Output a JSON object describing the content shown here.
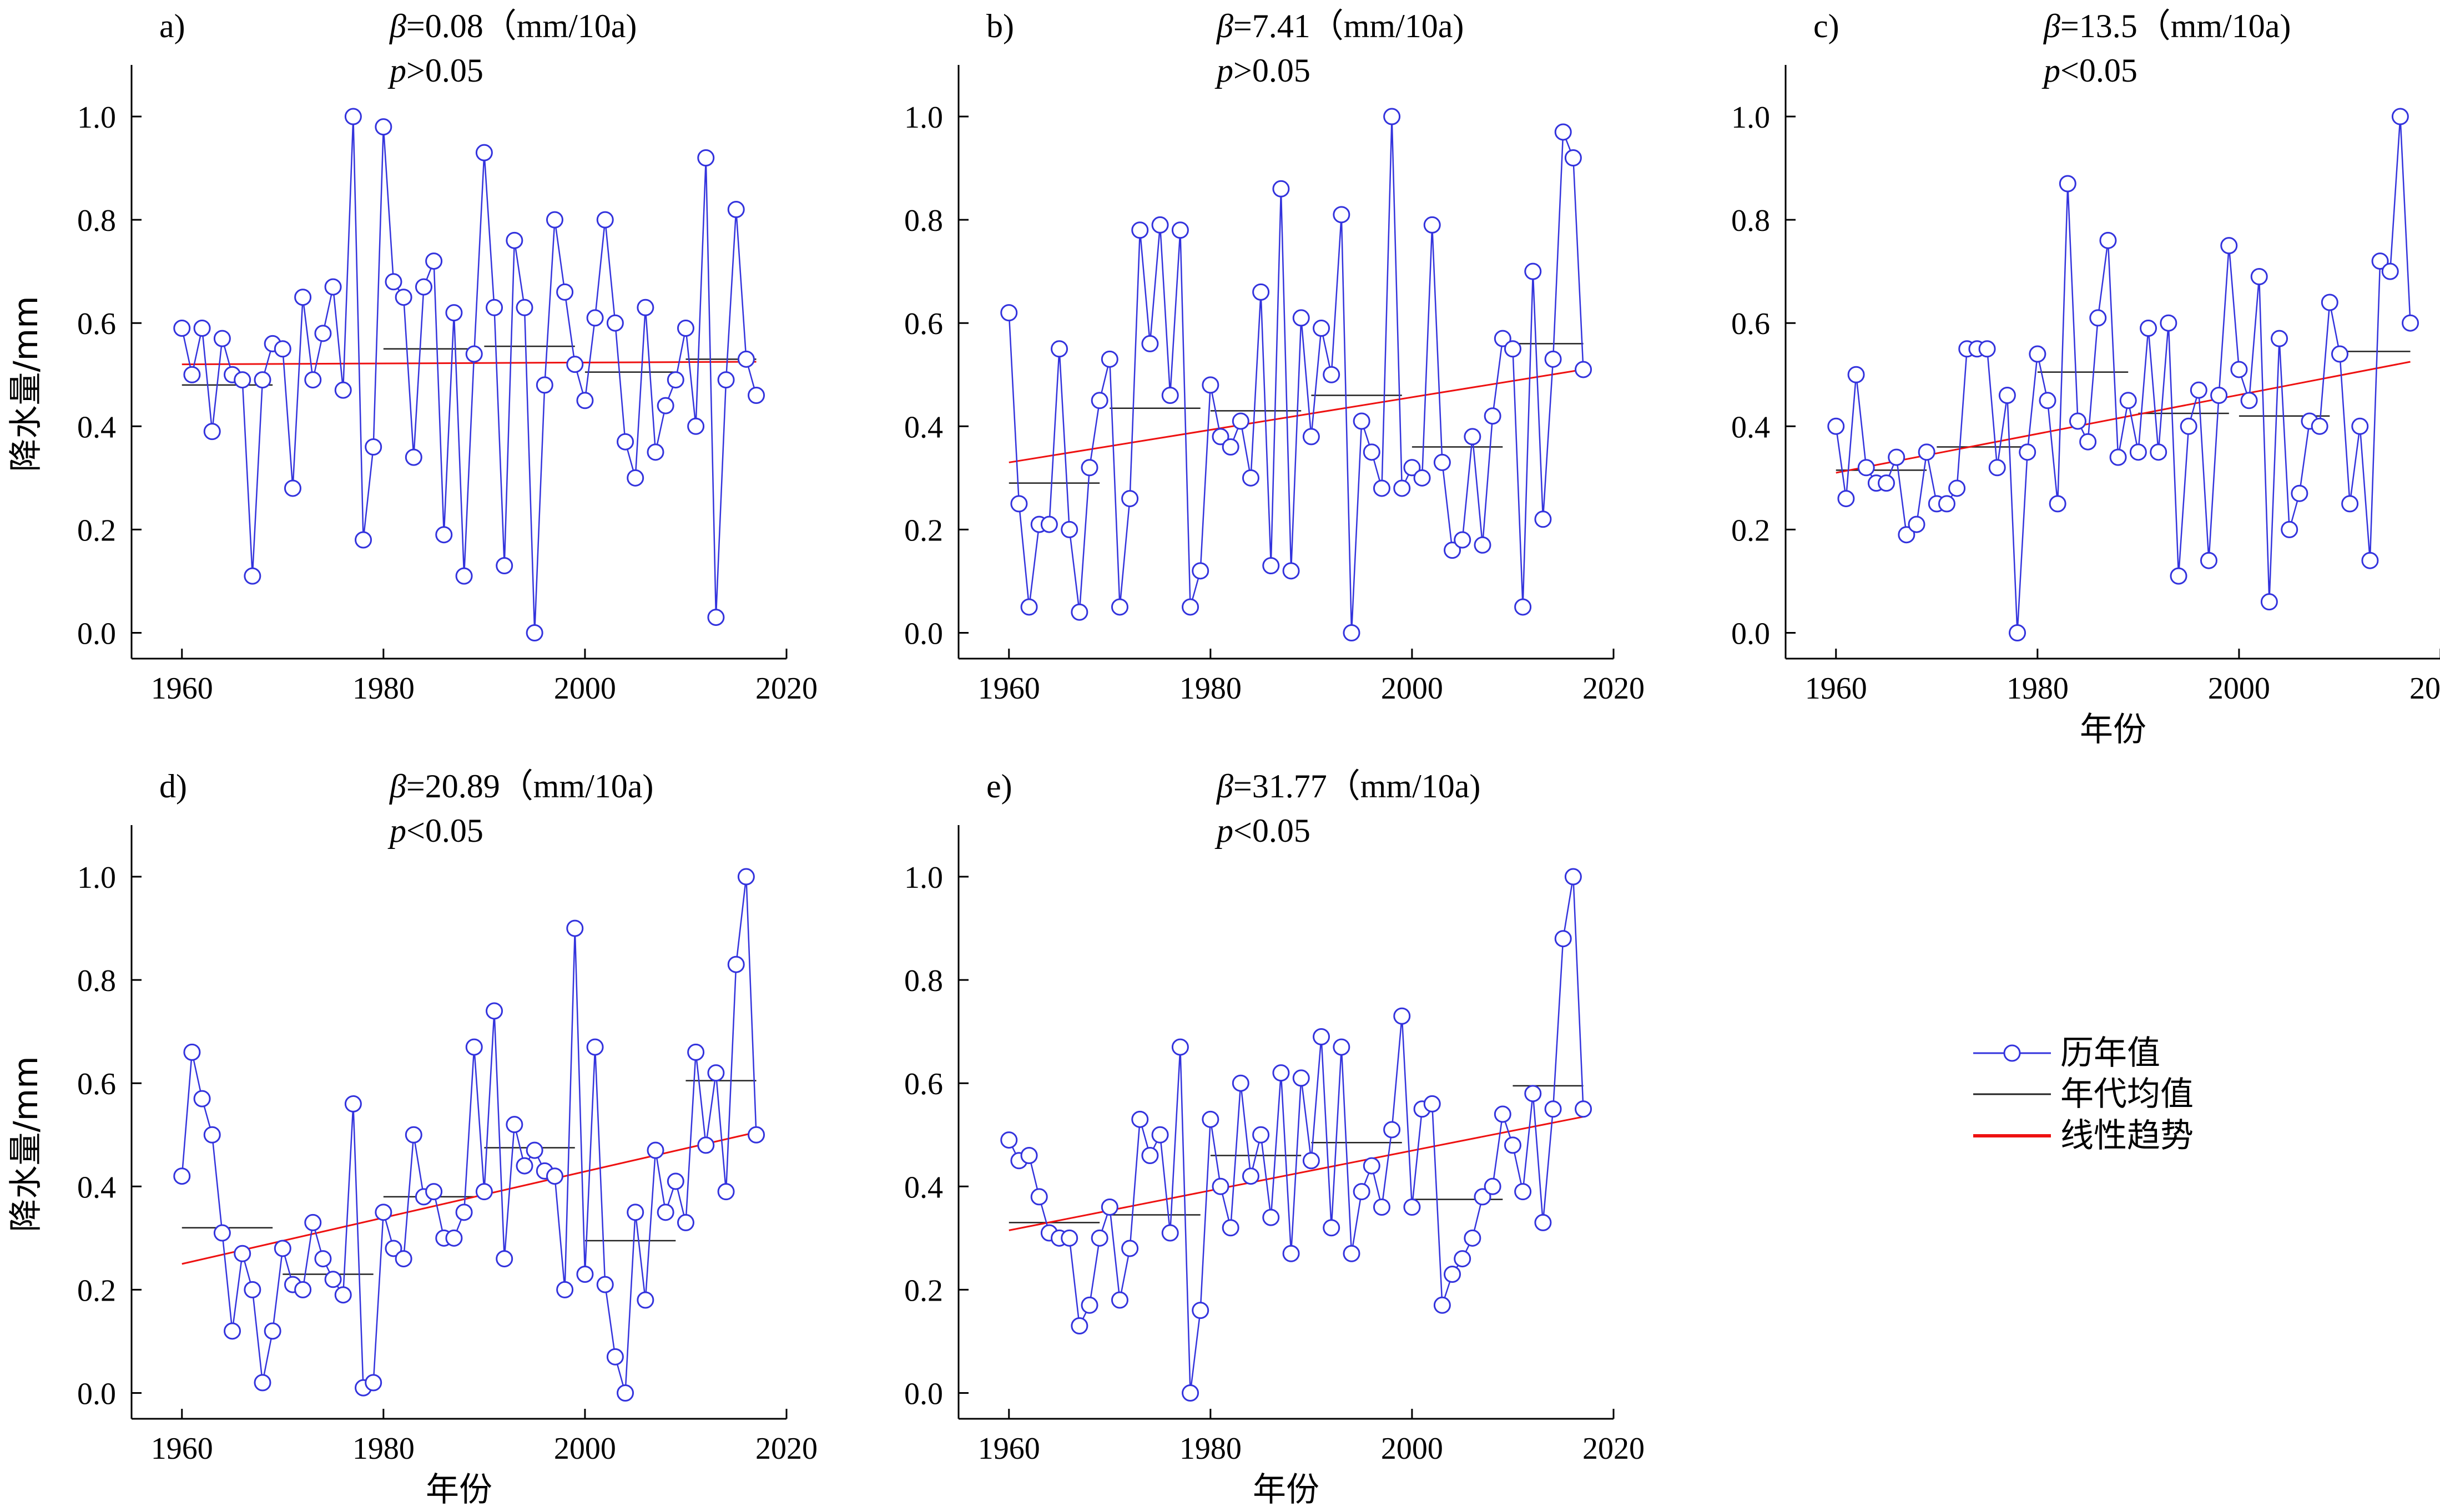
{
  "figure": {
    "legend": {
      "items": [
        "历年值",
        "年代均值",
        "线性趋势"
      ],
      "placement": "right"
    },
    "colors": {
      "series": "#3333dd",
      "decade_mean": "#222222",
      "trend": "#ee1111",
      "axis": "#000000"
    },
    "xticks": [
      1960,
      1980,
      2000,
      2020
    ],
    "yticks": [
      "0.0",
      "0.2",
      "0.4",
      "0.6",
      "0.8",
      "1.0"
    ]
  },
  "chart_data": [
    {
      "type": "line",
      "panel": "a)",
      "beta_value": "=0.08（mm/10a)",
      "p_value": ">0.05",
      "ylabel": "降水量/mm",
      "xlabel": "",
      "xlim": [
        1955,
        2020
      ],
      "ylim": [
        -0.05,
        1.1
      ],
      "years_start": 1960,
      "values": [
        0.59,
        0.5,
        0.59,
        0.39,
        0.57,
        0.5,
        0.49,
        0.11,
        0.49,
        0.56,
        0.55,
        0.28,
        0.65,
        0.49,
        0.58,
        0.67,
        0.47,
        1.0,
        0.18,
        0.36,
        0.98,
        0.68,
        0.65,
        0.34,
        0.67,
        0.72,
        0.19,
        0.62,
        0.11,
        0.54,
        0.93,
        0.63,
        0.13,
        0.76,
        0.63,
        0.0,
        0.48,
        0.8,
        0.66,
        0.52,
        0.45,
        0.61,
        0.8,
        0.6,
        0.37,
        0.3,
        0.63,
        0.35,
        0.44,
        0.49,
        0.59,
        0.4,
        0.92,
        0.03,
        0.49,
        0.82,
        0.53,
        0.46
      ],
      "decade_means": [
        {
          "from": 1960,
          "to": 1969,
          "value": 0.48
        },
        {
          "from": 1980,
          "to": 1989,
          "value": 0.55
        },
        {
          "from": 1990,
          "to": 1999,
          "value": 0.555
        },
        {
          "from": 2000,
          "to": 2009,
          "value": 0.505
        },
        {
          "from": 2010,
          "to": 2017,
          "value": 0.53
        }
      ],
      "trend": {
        "from": [
          1960,
          0.52
        ],
        "to": [
          2017,
          0.525
        ]
      }
    },
    {
      "type": "line",
      "panel": "b)",
      "beta_value": "=7.41（mm/10a)",
      "p_value": ">0.05",
      "ylabel": "",
      "xlabel": "",
      "xlim": [
        1955,
        2020
      ],
      "ylim": [
        -0.05,
        1.1
      ],
      "years_start": 1960,
      "values": [
        0.62,
        0.25,
        0.05,
        0.21,
        0.21,
        0.55,
        0.2,
        0.04,
        0.32,
        0.45,
        0.53,
        0.05,
        0.26,
        0.78,
        0.56,
        0.79,
        0.46,
        0.78,
        0.05,
        0.12,
        0.48,
        0.38,
        0.36,
        0.41,
        0.3,
        0.66,
        0.13,
        0.86,
        0.12,
        0.61,
        0.38,
        0.59,
        0.5,
        0.81,
        0.0,
        0.41,
        0.35,
        0.28,
        1.0,
        0.28,
        0.32,
        0.3,
        0.79,
        0.33,
        0.16,
        0.18,
        0.38,
        0.17,
        0.42,
        0.57,
        0.55,
        0.05,
        0.7,
        0.22,
        0.53,
        0.97,
        0.92,
        0.51
      ],
      "decade_means": [
        {
          "from": 1960,
          "to": 1969,
          "value": 0.29
        },
        {
          "from": 1970,
          "to": 1979,
          "value": 0.435
        },
        {
          "from": 1980,
          "to": 1989,
          "value": 0.43
        },
        {
          "from": 1990,
          "to": 1999,
          "value": 0.46
        },
        {
          "from": 2000,
          "to": 2009,
          "value": 0.36
        },
        {
          "from": 2010,
          "to": 2017,
          "value": 0.56
        }
      ],
      "trend": {
        "from": [
          1960,
          0.33
        ],
        "to": [
          2017,
          0.51
        ]
      }
    },
    {
      "type": "line",
      "panel": "c)",
      "beta_value": "=13.5（mm/10a)",
      "p_value": "<0.05",
      "ylabel": "",
      "xlabel": "年份",
      "xlim": [
        1955,
        2020
      ],
      "ylim": [
        -0.05,
        1.1
      ],
      "years_start": 1960,
      "values": [
        0.4,
        0.26,
        0.5,
        0.32,
        0.29,
        0.29,
        0.34,
        0.19,
        0.21,
        0.35,
        0.25,
        0.25,
        0.28,
        0.55,
        0.55,
        0.55,
        0.32,
        0.46,
        0.0,
        0.35,
        0.54,
        0.45,
        0.25,
        0.87,
        0.41,
        0.37,
        0.61,
        0.76,
        0.34,
        0.45,
        0.35,
        0.59,
        0.35,
        0.6,
        0.11,
        0.4,
        0.47,
        0.14,
        0.46,
        0.75,
        0.51,
        0.45,
        0.69,
        0.06,
        0.57,
        0.2,
        0.27,
        0.41,
        0.4,
        0.64,
        0.54,
        0.25,
        0.4,
        0.14,
        0.72,
        0.7,
        1.0,
        0.6
      ],
      "decade_means": [
        {
          "from": 1960,
          "to": 1969,
          "value": 0.315
        },
        {
          "from": 1970,
          "to": 1979,
          "value": 0.36
        },
        {
          "from": 1980,
          "to": 1989,
          "value": 0.505
        },
        {
          "from": 1990,
          "to": 1999,
          "value": 0.425
        },
        {
          "from": 2000,
          "to": 2009,
          "value": 0.42
        },
        {
          "from": 2010,
          "to": 2017,
          "value": 0.545
        }
      ],
      "trend": {
        "from": [
          1960,
          0.31
        ],
        "to": [
          2017,
          0.525
        ]
      }
    },
    {
      "type": "line",
      "panel": "d)",
      "beta_value": "=20.89（mm/10a)",
      "p_value": "<0.05",
      "ylabel": "降水量/mm",
      "xlabel": "年份",
      "xlim": [
        1955,
        2020
      ],
      "ylim": [
        -0.05,
        1.1
      ],
      "years_start": 1960,
      "values": [
        0.42,
        0.66,
        0.57,
        0.5,
        0.31,
        0.12,
        0.27,
        0.2,
        0.02,
        0.12,
        0.28,
        0.21,
        0.2,
        0.33,
        0.26,
        0.22,
        0.19,
        0.56,
        0.01,
        0.02,
        0.35,
        0.28,
        0.26,
        0.5,
        0.38,
        0.39,
        0.3,
        0.3,
        0.35,
        0.67,
        0.39,
        0.74,
        0.26,
        0.52,
        0.44,
        0.47,
        0.43,
        0.42,
        0.2,
        0.9,
        0.23,
        0.67,
        0.21,
        0.07,
        0.0,
        0.35,
        0.18,
        0.47,
        0.35,
        0.41,
        0.33,
        0.66,
        0.48,
        0.62,
        0.39,
        0.83,
        1.0,
        0.5
      ],
      "decade_means": [
        {
          "from": 1960,
          "to": 1969,
          "value": 0.32
        },
        {
          "from": 1970,
          "to": 1979,
          "value": 0.23
        },
        {
          "from": 1980,
          "to": 1989,
          "value": 0.38
        },
        {
          "from": 1990,
          "to": 1999,
          "value": 0.475
        },
        {
          "from": 2000,
          "to": 2009,
          "value": 0.295
        },
        {
          "from": 2010,
          "to": 2017,
          "value": 0.605
        }
      ],
      "trend": {
        "from": [
          1960,
          0.25
        ],
        "to": [
          2017,
          0.505
        ]
      }
    },
    {
      "type": "line",
      "panel": "e)",
      "beta_value": "=31.77（mm/10a)",
      "p_value": "<0.05",
      "ylabel": "",
      "xlabel": "年份",
      "xlim": [
        1955,
        2020
      ],
      "ylim": [
        -0.05,
        1.1
      ],
      "years_start": 1960,
      "values": [
        0.49,
        0.45,
        0.46,
        0.38,
        0.31,
        0.3,
        0.3,
        0.13,
        0.17,
        0.3,
        0.36,
        0.18,
        0.28,
        0.53,
        0.46,
        0.5,
        0.31,
        0.67,
        0.0,
        0.16,
        0.53,
        0.4,
        0.32,
        0.6,
        0.42,
        0.5,
        0.34,
        0.62,
        0.27,
        0.61,
        0.45,
        0.69,
        0.32,
        0.67,
        0.27,
        0.39,
        0.44,
        0.36,
        0.51,
        0.73,
        0.36,
        0.55,
        0.56,
        0.17,
        0.23,
        0.26,
        0.3,
        0.38,
        0.4,
        0.54,
        0.48,
        0.39,
        0.58,
        0.33,
        0.55,
        0.88,
        1.0,
        0.55
      ],
      "decade_means": [
        {
          "from": 1960,
          "to": 1969,
          "value": 0.33
        },
        {
          "from": 1970,
          "to": 1979,
          "value": 0.345
        },
        {
          "from": 1980,
          "to": 1989,
          "value": 0.46
        },
        {
          "from": 1990,
          "to": 1999,
          "value": 0.485
        },
        {
          "from": 2000,
          "to": 2009,
          "value": 0.375
        },
        {
          "from": 2010,
          "to": 2017,
          "value": 0.595
        }
      ],
      "trend": {
        "from": [
          1960,
          0.315
        ],
        "to": [
          2017,
          0.535
        ]
      }
    }
  ]
}
